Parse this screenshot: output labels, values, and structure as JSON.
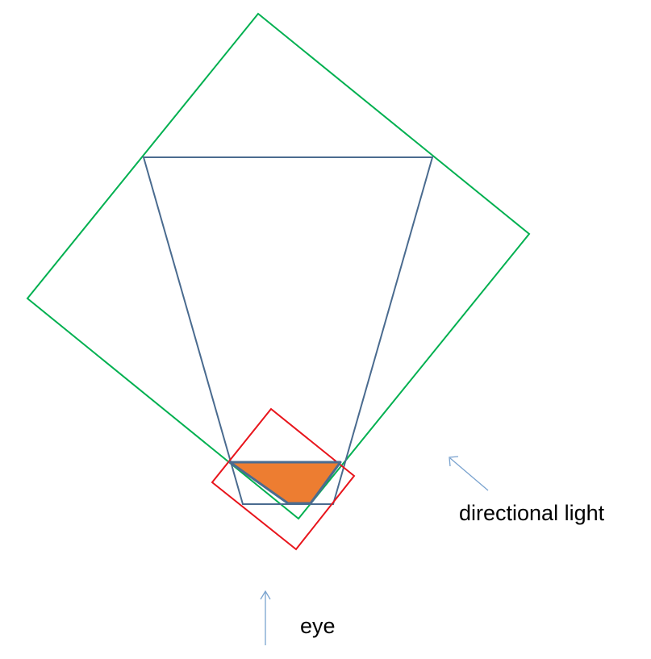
{
  "labels": {
    "directional_light": "directional light",
    "eye": "eye"
  },
  "colors": {
    "light_bounds": "#00b050",
    "frustum": "#4a6b8f",
    "tight_bounds": "#e8141b",
    "intersection_fill": "#ed7d31",
    "intersection_stroke": "#4a6b8f",
    "arrows": "#7aa3cf",
    "text": "#000000"
  }
}
